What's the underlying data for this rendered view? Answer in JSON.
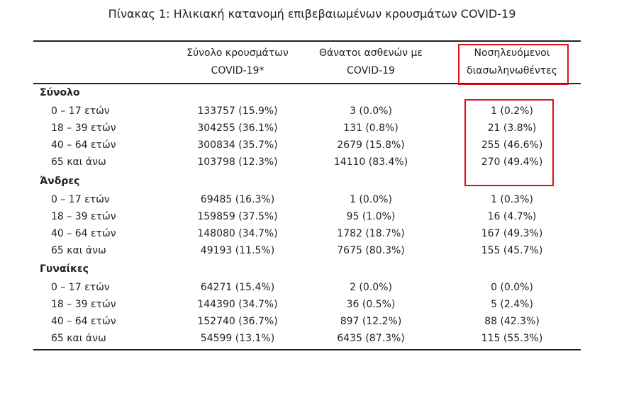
{
  "title": "Πίνακας 1: Ηλικιακή κατανομή επιβεβαιωμένων κρουσμάτων COVID-19",
  "table": {
    "headers": [
      {
        "lines": [
          "Σύνολο κρουσμάτων",
          "COVID-19*"
        ]
      },
      {
        "lines": [
          "Θάνατοι ασθενών με",
          "COVID-19"
        ]
      },
      {
        "lines": [
          "Νοσηλευόμενοι",
          "διασωληνωθέντες"
        ]
      }
    ],
    "groups": [
      {
        "label": "Σύνολο",
        "rows": [
          [
            "0 – 17 ετών",
            "133757 (15.9%)",
            "3 (0.0%)",
            "1 (0.2%)"
          ],
          [
            "18 – 39 ετών",
            "304255 (36.1%)",
            "131 (0.8%)",
            "21 (3.8%)"
          ],
          [
            "40 – 64 ετών",
            "300834 (35.7%)",
            "2679 (15.8%)",
            "255 (46.6%)"
          ],
          [
            "65 και άνω",
            "103798 (12.3%)",
            "14110 (83.4%)",
            "270 (49.4%)"
          ]
        ]
      },
      {
        "label": "Άνδρες",
        "rows": [
          [
            "0 – 17 ετών",
            "69485 (16.3%)",
            "1 (0.0%)",
            "1 (0.3%)"
          ],
          [
            "18 – 39 ετών",
            "159859 (37.5%)",
            "95 (1.0%)",
            "16 (4.7%)"
          ],
          [
            "40 – 64 ετών",
            "148080 (34.7%)",
            "1782 (18.7%)",
            "167 (49.3%)"
          ],
          [
            "65 και άνω",
            "49193 (11.5%)",
            "7675 (80.3%)",
            "155 (45.7%)"
          ]
        ]
      },
      {
        "label": "Γυναίκες",
        "rows": [
          [
            "0 – 17 ετών",
            "64271 (15.4%)",
            "2 (0.0%)",
            "0 (0.0%)"
          ],
          [
            "18 – 39 ετών",
            "144390 (34.7%)",
            "36 (0.5%)",
            "5 (2.4%)"
          ],
          [
            "40 – 64 ετών",
            "152740 (36.7%)",
            "897 (12.2%)",
            "88 (42.3%)"
          ],
          [
            "65 και άνω",
            "54599 (13.1%)",
            "6435 (87.3%)",
            "115 (55.3%)"
          ]
        ]
      }
    ]
  }
}
